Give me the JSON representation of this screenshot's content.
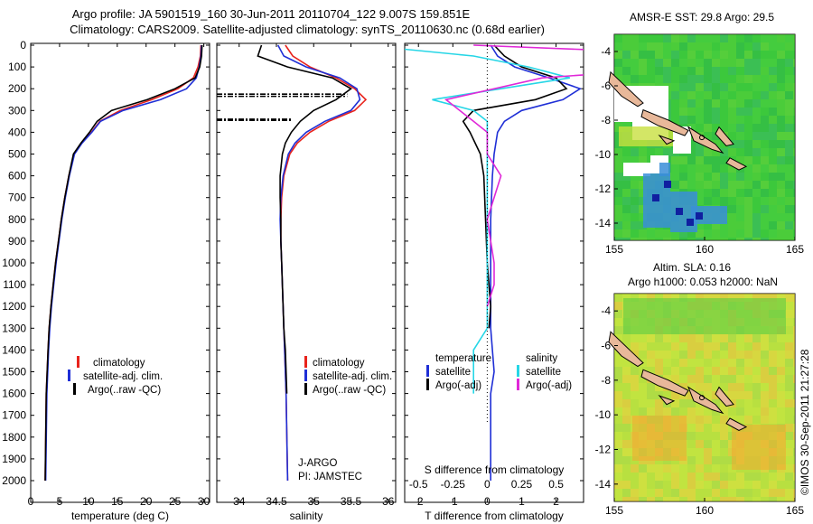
{
  "header": {
    "line1": "Argo profile: JA 5901519_160 30-Jun-2011 20110704_122 9.007S 159.851E",
    "line2": "Climatology: CARS2009. Satellite-adjusted climatology: synTS_20110630.nc (0.68d earlier)"
  },
  "depth_ticks": [
    "0",
    "100",
    "200",
    "300",
    "400",
    "500",
    "600",
    "700",
    "800",
    "900",
    "1000",
    "1100",
    "1200",
    "1300",
    "1400",
    "1500",
    "1600",
    "1700",
    "1800",
    "1900",
    "2000"
  ],
  "colors": {
    "climatology": "#e8231c",
    "satellite": "#1f2fd6",
    "argo": "#000000",
    "salinity_sat": "#26d6e6",
    "salinity_argo": "#e028d8"
  },
  "chart_data": [
    {
      "type": "line",
      "xlabel": "temperature (deg C)",
      "ylabel": "",
      "xlim": [
        0,
        31
      ],
      "ylim": [
        2050,
        0
      ],
      "xticks": [
        "0",
        "5",
        "10",
        "15",
        "20",
        "25",
        "30"
      ],
      "legend": [
        "climatology",
        "satellite-adj. clim.",
        "Argo(..raw -QC)"
      ],
      "legend_placement": "bottom-right",
      "series": [
        {
          "name": "climatology",
          "x": [
            29.5,
            29.4,
            29.0,
            28.2,
            25.5,
            21.0,
            15.5,
            12.0,
            10.5,
            8.8,
            7.5,
            6.6,
            5.9,
            5.3,
            4.8,
            4.3,
            3.9,
            3.5,
            3.2,
            3.0,
            2.7,
            2.5
          ],
          "y": [
            0,
            50,
            100,
            150,
            200,
            250,
            300,
            350,
            400,
            450,
            500,
            600,
            700,
            800,
            900,
            1000,
            1100,
            1200,
            1300,
            1400,
            1600,
            2000
          ]
        },
        {
          "name": "satellite-adj. clim.",
          "x": [
            29.6,
            29.5,
            29.2,
            28.7,
            27.0,
            22.5,
            16.0,
            12.1,
            10.6,
            8.9,
            7.6,
            6.7,
            6.0,
            5.4,
            4.9,
            4.4,
            4.0,
            3.6,
            3.3,
            3.1,
            2.8,
            2.6
          ],
          "y": [
            0,
            50,
            100,
            150,
            200,
            250,
            300,
            350,
            400,
            450,
            500,
            600,
            700,
            800,
            900,
            1000,
            1100,
            1200,
            1300,
            1400,
            1600,
            2000
          ]
        },
        {
          "name": "Argo(..raw -QC)",
          "x": [
            29.7,
            29.6,
            29.3,
            28.5,
            25.0,
            20.2,
            14.0,
            11.5,
            10.2,
            8.7,
            7.4,
            6.6,
            5.9,
            5.3,
            4.8,
            4.3,
            3.9,
            3.5,
            3.2,
            3.0,
            2.7,
            2.5
          ],
          "y": [
            0,
            50,
            100,
            150,
            200,
            250,
            300,
            350,
            400,
            450,
            500,
            600,
            700,
            800,
            900,
            1000,
            1100,
            1200,
            1300,
            1400,
            1600,
            2000
          ]
        }
      ]
    },
    {
      "type": "line",
      "xlabel": "salinity",
      "ylabel": "",
      "xlim": [
        33.7,
        36.1
      ],
      "ylim": [
        2050,
        0
      ],
      "xticks": [
        "34",
        "34.5",
        "35",
        "35.5",
        "36"
      ],
      "legend": [
        "climatology",
        "satellite-adj. clim.",
        "Argo(..raw -QC)"
      ],
      "legend_placement": "bottom-right",
      "annotations": [
        "J-ARGO",
        "PI: JAMSTEC"
      ],
      "series": [
        {
          "name": "climatology",
          "x": [
            34.62,
            34.72,
            34.95,
            35.3,
            35.55,
            35.7,
            35.55,
            35.2,
            34.95,
            34.78,
            34.68,
            34.6,
            34.57,
            34.56,
            34.56,
            34.57,
            34.58,
            34.59,
            34.6,
            34.61,
            34.63,
            34.65
          ],
          "y": [
            0,
            50,
            100,
            150,
            200,
            250,
            300,
            350,
            400,
            450,
            500,
            600,
            700,
            800,
            900,
            1000,
            1100,
            1200,
            1300,
            1400,
            1600,
            2000
          ]
        },
        {
          "name": "satellite-adj. clim.",
          "x": [
            34.52,
            34.6,
            34.9,
            35.35,
            35.58,
            35.62,
            35.5,
            35.15,
            34.9,
            34.75,
            34.66,
            34.59,
            34.56,
            34.55,
            34.56,
            34.57,
            34.58,
            34.59,
            34.6,
            34.61,
            34.63,
            34.65
          ],
          "y": [
            0,
            50,
            100,
            150,
            200,
            250,
            300,
            350,
            400,
            450,
            500,
            600,
            700,
            800,
            900,
            1000,
            1100,
            1200,
            1300,
            1400,
            1600,
            2000
          ]
        },
        {
          "name": "Argo(..raw -QC)",
          "x": [
            34.3,
            34.25,
            34.65,
            35.25,
            35.5,
            35.3,
            35.0,
            34.82,
            34.7,
            34.62,
            34.58,
            34.55,
            34.55,
            34.56,
            34.56,
            34.57,
            34.58,
            34.59,
            34.6,
            34.62,
            34.64
          ],
          "y": [
            0,
            50,
            100,
            150,
            200,
            250,
            300,
            350,
            400,
            450,
            500,
            600,
            700,
            800,
            900,
            1000,
            1100,
            1200,
            1300,
            1400,
            1600
          ]
        }
      ]
    },
    {
      "type": "line",
      "xlabel": "T difference from climatology",
      "xlabel_top": "S difference from climatology",
      "xlim": [
        -2.4,
        2.8
      ],
      "ylim": [
        2050,
        0
      ],
      "xticks": [
        "-2",
        "-1",
        "0",
        "1",
        "2"
      ],
      "xticks_s": [
        "-0.5",
        "-0.25",
        "0",
        "0.25",
        "0.5"
      ],
      "legend_left": {
        "title": "temperature",
        "items": [
          "satellite",
          "Argo(-adj)"
        ]
      },
      "legend_right": {
        "title": "salinity",
        "items": [
          "satellite",
          "Argo(-adj)"
        ]
      },
      "legend_placement": "bottom",
      "series": [
        {
          "name": "temperature satellite",
          "x": [
            0.1,
            0.3,
            0.8,
            1.8,
            2.7,
            2.2,
            1.0,
            0.5,
            0.3,
            0.2,
            0.15,
            0.1,
            0.1,
            0.1,
            0.1,
            0.1,
            0.15,
            0.2,
            0.1,
            0.1
          ],
          "y": [
            0,
            50,
            100,
            150,
            200,
            250,
            300,
            350,
            400,
            500,
            600,
            800,
            1000,
            1100,
            1200,
            1300,
            1400,
            1500,
            1600,
            2000
          ]
        },
        {
          "name": "temperature Argo(-adj)",
          "x": [
            0.2,
            0.5,
            1.0,
            2.0,
            2.3,
            1.4,
            -0.4,
            -0.7,
            -0.5,
            -0.2,
            -0.1,
            -0.05,
            0.0,
            0.05,
            0.1,
            0.05
          ],
          "y": [
            0,
            50,
            100,
            150,
            200,
            250,
            300,
            350,
            400,
            500,
            600,
            800,
            1000,
            1100,
            1200,
            1300
          ]
        },
        {
          "name": "salinity satellite",
          "x": [
            -0.9,
            -0.1,
            0.3,
            0.6,
            0.1,
            -0.4,
            -0.1,
            0.0,
            0.0,
            0.0,
            0.0,
            0.0,
            0.0,
            0.0,
            0.0,
            0.0,
            -0.1,
            -0.1,
            -0.1
          ],
          "y": [
            0,
            50,
            100,
            150,
            200,
            250,
            300,
            350,
            400,
            500,
            600,
            800,
            1000,
            1100,
            1200,
            1300,
            1400,
            1500,
            1600
          ]
        },
        {
          "name": "salinity Argo(-adj)",
          "x": [
            -0.1,
            1.9,
            1.5,
            0.4,
            -0.3,
            -0.2,
            -0.1,
            0.0,
            0.0,
            0.1,
            0.0,
            0.05,
            0.05,
            0.0
          ],
          "y": [
            0,
            50,
            100,
            150,
            250,
            300,
            350,
            400,
            500,
            600,
            800,
            1000,
            1100,
            1200
          ]
        }
      ]
    },
    {
      "type": "heatmap",
      "title": "AMSR-E SST: 29.8  Argo: 29.5",
      "xticks": [
        "155",
        "160",
        "165"
      ],
      "yticks": [
        "-4",
        "-6",
        "-8",
        "-10",
        "-12",
        "-14"
      ],
      "xlim": [
        155,
        165
      ],
      "ylim": [
        -15,
        -3
      ]
    },
    {
      "type": "heatmap",
      "title": "Altim. SLA: 0.16",
      "subtitle": "Argo h1000: 0.053 h2000: NaN",
      "xticks": [
        "155",
        "160",
        "165"
      ],
      "yticks": [
        "-4",
        "-6",
        "-8",
        "-10",
        "-12",
        "-14"
      ],
      "xlim": [
        155,
        165
      ],
      "ylim": [
        -15,
        -3
      ]
    }
  ],
  "footer": "©IMOS 30-Sep-2011 21:27:28"
}
